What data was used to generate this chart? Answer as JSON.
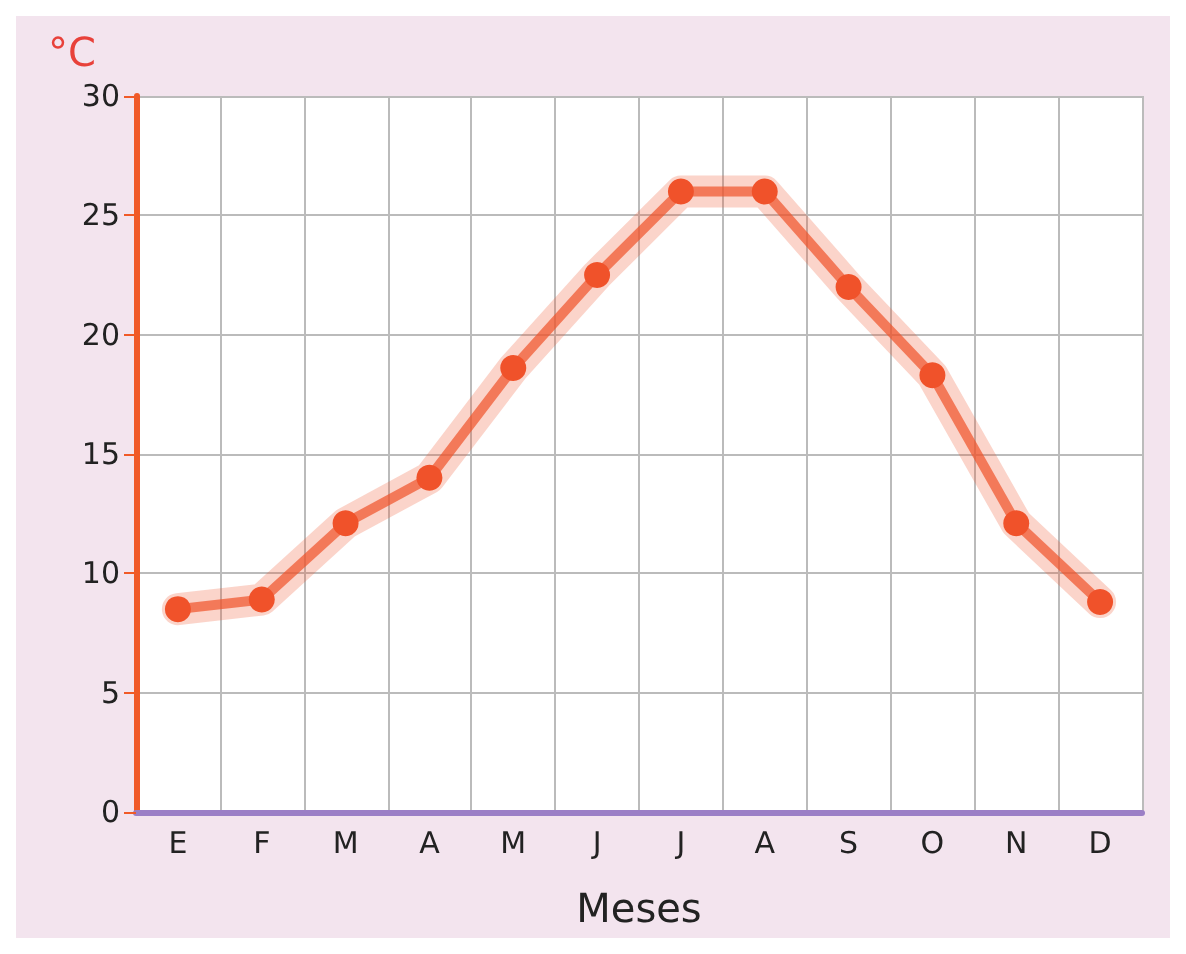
{
  "chart_data": {
    "type": "line",
    "xlabel": "Meses",
    "ylabel": "°C",
    "categories": [
      "E",
      "F",
      "M",
      "A",
      "M",
      "J",
      "J",
      "A",
      "S",
      "O",
      "N",
      "D"
    ],
    "series": [
      {
        "color": "#f0522a",
        "values": [
          8.5,
          8.9,
          12.1,
          14.0,
          18.6,
          22.5,
          26.0,
          26.0,
          22.0,
          18.3,
          12.1,
          8.8
        ]
      }
    ],
    "ylim": [
      0,
      30
    ],
    "yticks": [
      0,
      5,
      10,
      15,
      20,
      25,
      30
    ],
    "grid": true,
    "marker": "circle",
    "line_style": "solid"
  }
}
